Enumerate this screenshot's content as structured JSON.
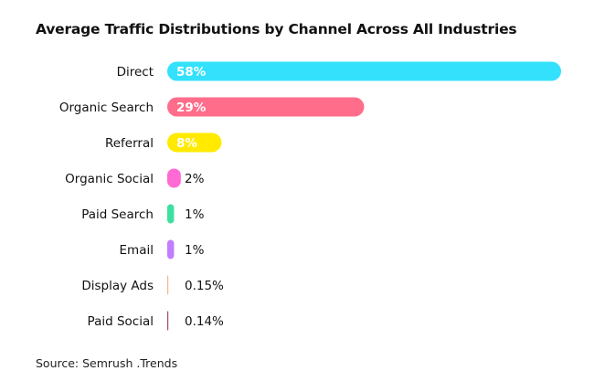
{
  "chart_data": {
    "type": "bar",
    "orientation": "horizontal",
    "title": "Average Traffic Distributions by Channel Across All Industries",
    "source": "Source: Semrush .Trends",
    "categories": [
      "Direct",
      "Organic Search",
      "Referral",
      "Organic Social",
      "Paid Search",
      "Email",
      "Display Ads",
      "Paid Social"
    ],
    "values": [
      58,
      29,
      8,
      2,
      1,
      1,
      0.15,
      0.14
    ],
    "data_labels": [
      "58%",
      "29%",
      "8%",
      "2%",
      "1%",
      "1%",
      "0.15%",
      "0.14%"
    ],
    "colors": [
      "#33e1fd",
      "#ff6d8a",
      "#ffea00",
      "#ff6ad5",
      "#3de0a0",
      "#c27dff",
      "#f7b68a",
      "#a44d6e"
    ],
    "unit": "%",
    "grid": false,
    "legend": "none"
  }
}
